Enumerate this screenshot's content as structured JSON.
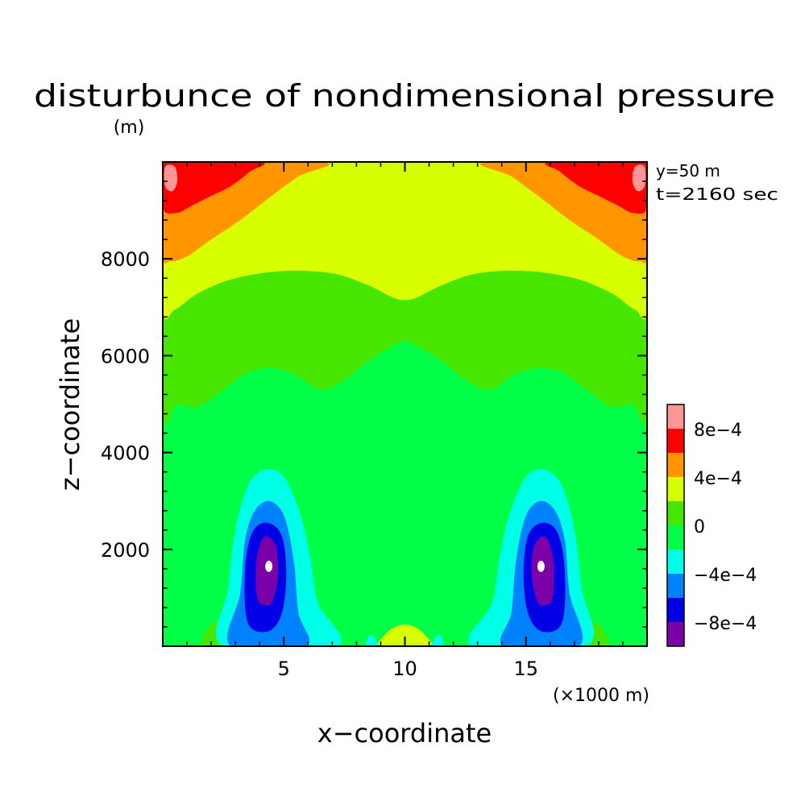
{
  "chart_data": {
    "type": "heatmap",
    "title": "disturbunce of nondimensional pressure",
    "units": "(m)",
    "xlabel": "x−coordinate",
    "ylabel": "z−coordinate",
    "x_unit_label": "(×1000 m)",
    "annotations": [
      "y=50 m",
      "t=2160 sec"
    ],
    "xlim": [
      0,
      20
    ],
    "ylim": [
      0,
      10000
    ],
    "x_ticks": [
      {
        "value": 5,
        "label": "5"
      },
      {
        "value": 10,
        "label": "10"
      },
      {
        "value": 15,
        "label": "15"
      }
    ],
    "y_ticks": [
      {
        "value": 2000,
        "label": "2000"
      },
      {
        "value": 4000,
        "label": "4000"
      },
      {
        "value": 6000,
        "label": "6000"
      },
      {
        "value": 8000,
        "label": "8000"
      }
    ],
    "colorbar": {
      "levels": [
        -0.001,
        -0.0008,
        -0.0006,
        -0.0004,
        -0.0002,
        0,
        0.0002,
        0.0004,
        0.0006,
        0.0008,
        0.001
      ],
      "colors": [
        "#7b00a8",
        "#0000e6",
        "#0082ff",
        "#00ffe6",
        "#00ff46",
        "#46e600",
        "#d8ff00",
        "#ff9600",
        "#ff0000",
        "#ff9696"
      ],
      "tick_labels": [
        {
          "value": -0.0008,
          "label": "−8e−4"
        },
        {
          "value": -0.0004,
          "label": "−4e−4"
        },
        {
          "value": 0,
          "label": "0"
        },
        {
          "value": 0.0004,
          "label": "4e−4"
        },
        {
          "value": 0.0008,
          "label": "8e−4"
        }
      ]
    },
    "field_regions": [
      {
        "level": 4,
        "polygon": [
          [
            0,
            0
          ],
          [
            20,
            0
          ],
          [
            20,
            10000
          ],
          [
            0,
            10000
          ]
        ]
      },
      {
        "level": 5,
        "polygon": [
          [
            0,
            4950
          ],
          [
            0.6,
            5000
          ],
          [
            1.5,
            4950
          ],
          [
            2.5,
            5300
          ],
          [
            3.5,
            5650
          ],
          [
            4.5,
            5750
          ],
          [
            5.5,
            5600
          ],
          [
            6.5,
            5300
          ],
          [
            7.5,
            5500
          ],
          [
            8.5,
            5900
          ],
          [
            9.5,
            6200
          ],
          [
            10,
            6300
          ],
          [
            10.5,
            6200
          ],
          [
            11.5,
            5900
          ],
          [
            12.5,
            5500
          ],
          [
            13.5,
            5300
          ],
          [
            14.5,
            5600
          ],
          [
            15.5,
            5750
          ],
          [
            16.5,
            5650
          ],
          [
            17.5,
            5300
          ],
          [
            18.5,
            4950
          ],
          [
            19.4,
            5000
          ],
          [
            20,
            4950
          ],
          [
            20,
            10000
          ],
          [
            0,
            10000
          ]
        ]
      },
      {
        "level": 5,
        "polygon": [
          [
            1.6,
            0
          ],
          [
            1.9,
            400
          ],
          [
            2.3,
            500
          ],
          [
            2.6,
            350
          ],
          [
            2.8,
            0
          ]
        ]
      },
      {
        "level": 5,
        "polygon": [
          [
            17.2,
            0
          ],
          [
            17.4,
            350
          ],
          [
            17.7,
            500
          ],
          [
            18.1,
            400
          ],
          [
            18.4,
            0
          ]
        ]
      },
      {
        "level": 6,
        "polygon": [
          [
            0,
            7000
          ],
          [
            0.5,
            6950
          ],
          [
            1.5,
            7300
          ],
          [
            3,
            7600
          ],
          [
            5,
            7750
          ],
          [
            7,
            7700
          ],
          [
            8.5,
            7450
          ],
          [
            9.5,
            7200
          ],
          [
            10,
            7150
          ],
          [
            10.5,
            7200
          ],
          [
            11.5,
            7450
          ],
          [
            13,
            7700
          ],
          [
            15,
            7750
          ],
          [
            17,
            7600
          ],
          [
            18.5,
            7300
          ],
          [
            19.5,
            6950
          ],
          [
            20,
            7000
          ],
          [
            20,
            10000
          ],
          [
            0,
            10000
          ]
        ]
      },
      {
        "level": 6,
        "polygon": [
          [
            9,
            0
          ],
          [
            9.2,
            250
          ],
          [
            9.6,
            400
          ],
          [
            10,
            450
          ],
          [
            10.4,
            400
          ],
          [
            10.8,
            250
          ],
          [
            11,
            0
          ]
        ]
      },
      {
        "level": 7,
        "polygon": [
          [
            0,
            8100
          ],
          [
            0.3,
            7950
          ],
          [
            1,
            8050
          ],
          [
            2,
            8400
          ],
          [
            3.2,
            8800
          ],
          [
            4.5,
            9300
          ],
          [
            5.6,
            9700
          ],
          [
            6.6,
            10000
          ],
          [
            0,
            10000
          ]
        ]
      },
      {
        "level": 7,
        "polygon": [
          [
            20,
            8100
          ],
          [
            19.7,
            7950
          ],
          [
            19,
            8050
          ],
          [
            18,
            8400
          ],
          [
            16.8,
            8800
          ],
          [
            15.5,
            9300
          ],
          [
            14.4,
            9700
          ],
          [
            13.4,
            10000
          ],
          [
            20,
            10000
          ]
        ]
      },
      {
        "level": 8,
        "polygon": [
          [
            0,
            9050
          ],
          [
            0.6,
            8950
          ],
          [
            1.2,
            9100
          ],
          [
            2,
            9300
          ],
          [
            2.8,
            9500
          ],
          [
            3.6,
            9800
          ],
          [
            4,
            10000
          ],
          [
            0,
            10000
          ]
        ]
      },
      {
        "level": 8,
        "polygon": [
          [
            20,
            9050
          ],
          [
            19.4,
            8950
          ],
          [
            18.8,
            9100
          ],
          [
            18,
            9300
          ],
          [
            17.2,
            9500
          ],
          [
            16.4,
            9800
          ],
          [
            16,
            10000
          ],
          [
            20,
            10000
          ]
        ]
      },
      {
        "level": 9,
        "polygon": [
          [
            0.1,
            9500
          ],
          [
            0.4,
            9400
          ],
          [
            0.6,
            9600
          ],
          [
            0.5,
            9900
          ],
          [
            0.1,
            9900
          ]
        ]
      },
      {
        "level": 9,
        "polygon": [
          [
            19.9,
            9500
          ],
          [
            19.6,
            9400
          ],
          [
            19.4,
            9600
          ],
          [
            19.5,
            9900
          ],
          [
            19.9,
            9900
          ]
        ]
      },
      {
        "level": 3,
        "polygon": [
          [
            2.5,
            0
          ],
          [
            2.7,
            1200
          ],
          [
            3,
            2400
          ],
          [
            3.5,
            3300
          ],
          [
            4.2,
            3650
          ],
          [
            5,
            3500
          ],
          [
            5.7,
            2700
          ],
          [
            6.1,
            1800
          ],
          [
            6.4,
            900
          ],
          [
            7.2,
            0
          ]
        ]
      },
      {
        "level": 3,
        "polygon": [
          [
            12.8,
            0
          ],
          [
            13.6,
            900
          ],
          [
            13.9,
            1800
          ],
          [
            14.3,
            2700
          ],
          [
            15,
            3500
          ],
          [
            15.8,
            3650
          ],
          [
            16.5,
            3300
          ],
          [
            17,
            2400
          ],
          [
            17.3,
            1200
          ],
          [
            17.5,
            0
          ]
        ]
      },
      {
        "level": 3,
        "polygon": [
          [
            8.4,
            0
          ],
          [
            8.6,
            250
          ],
          [
            8.9,
            0
          ]
        ]
      },
      {
        "level": 3,
        "polygon": [
          [
            11.1,
            0
          ],
          [
            11.4,
            250
          ],
          [
            11.6,
            0
          ]
        ]
      },
      {
        "level": 2,
        "polygon": [
          [
            2.8,
            0
          ],
          [
            3.2,
            1100
          ],
          [
            3.4,
            2200
          ],
          [
            3.8,
            2800
          ],
          [
            4.4,
            3000
          ],
          [
            5,
            2700
          ],
          [
            5.4,
            1800
          ],
          [
            5.6,
            700
          ],
          [
            5.9,
            0
          ]
        ]
      },
      {
        "level": 2,
        "polygon": [
          [
            14.1,
            0
          ],
          [
            14.4,
            700
          ],
          [
            14.6,
            1800
          ],
          [
            15,
            2700
          ],
          [
            15.6,
            3000
          ],
          [
            16.2,
            2800
          ],
          [
            16.6,
            2200
          ],
          [
            16.8,
            1100
          ],
          [
            17.2,
            0
          ]
        ]
      },
      {
        "level": 1,
        "polygon": [
          [
            3.5,
            500
          ],
          [
            3.4,
            1600
          ],
          [
            3.7,
            2350
          ],
          [
            4.3,
            2550
          ],
          [
            4.9,
            2300
          ],
          [
            5.1,
            1500
          ],
          [
            4.9,
            650
          ],
          [
            4.3,
            300
          ]
        ]
      },
      {
        "level": 1,
        "polygon": [
          [
            16.5,
            500
          ],
          [
            16.6,
            1600
          ],
          [
            16.3,
            2350
          ],
          [
            15.7,
            2550
          ],
          [
            15.1,
            2300
          ],
          [
            14.9,
            1500
          ],
          [
            15.1,
            650
          ],
          [
            15.7,
            300
          ]
        ]
      },
      {
        "level": 0,
        "polygon": [
          [
            3.9,
            1000
          ],
          [
            3.85,
            1700
          ],
          [
            4.1,
            2200
          ],
          [
            4.4,
            2250
          ],
          [
            4.7,
            2000
          ],
          [
            4.75,
            1400
          ],
          [
            4.5,
            900
          ],
          [
            4.2,
            850
          ]
        ]
      },
      {
        "level": 0,
        "polygon": [
          [
            16.1,
            1000
          ],
          [
            16.15,
            1700
          ],
          [
            15.9,
            2200
          ],
          [
            15.6,
            2250
          ],
          [
            15.3,
            2000
          ],
          [
            15.25,
            1400
          ],
          [
            15.5,
            900
          ],
          [
            15.8,
            850
          ]
        ]
      }
    ],
    "white_spots": [
      [
        4.38,
        1650
      ],
      [
        15.62,
        1650
      ]
    ]
  }
}
